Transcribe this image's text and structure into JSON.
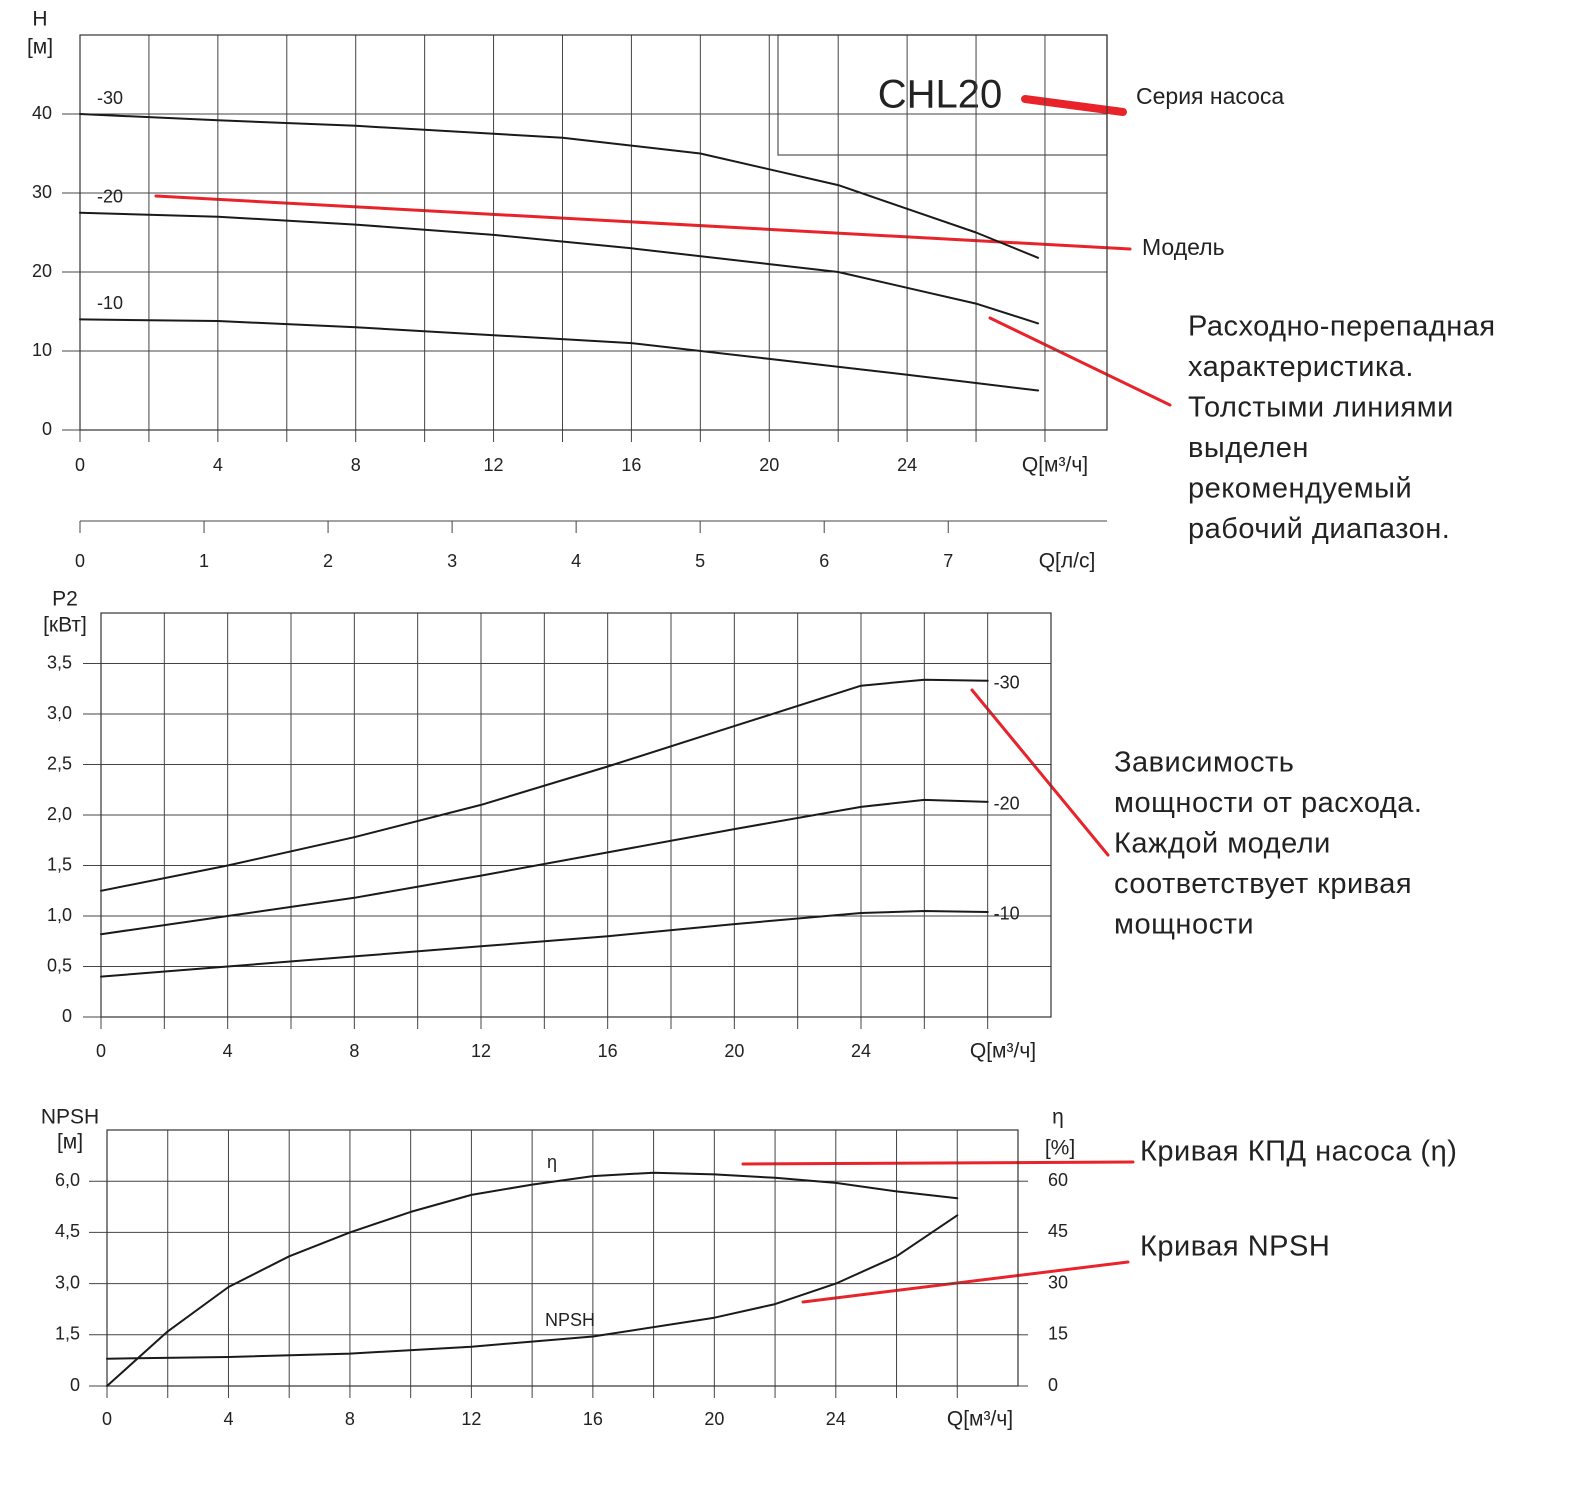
{
  "chart_data": [
    {
      "type": "line",
      "title": "CHL20",
      "xlabel": "Q[м³/ч]",
      "ylabel": "H",
      "yunit": "[м]",
      "xlim": [
        0,
        29.8
      ],
      "xticks": [
        0,
        4,
        8,
        12,
        16,
        20,
        24
      ],
      "xgrid": [
        0,
        2,
        4,
        6,
        8,
        10,
        12,
        14,
        16,
        18,
        20,
        22,
        24,
        26,
        28
      ],
      "ylim": [
        0,
        50
      ],
      "yticks": [
        0,
        10,
        20,
        30,
        40
      ],
      "grid": true,
      "x2lim": [
        0,
        8.28
      ],
      "x2ticks": [
        0,
        1,
        2,
        3,
        4,
        5,
        6,
        7
      ],
      "x2label": "Q[л/с]",
      "series": [
        {
          "name": "-30",
          "color": "#1a1a1a",
          "x": [
            0,
            4,
            8,
            12,
            14,
            16,
            18,
            20,
            22,
            24,
            26,
            27.8
          ],
          "values": [
            40,
            39.2,
            38.5,
            37.5,
            37,
            36,
            35,
            33,
            31,
            28,
            25,
            21.8
          ]
        },
        {
          "name": "-20",
          "color": "#1a1a1a",
          "x": [
            0,
            4,
            8,
            12,
            16,
            20,
            22,
            24,
            26,
            27.8
          ],
          "values": [
            27.5,
            27,
            26,
            24.7,
            23,
            21,
            20,
            18,
            16,
            13.5
          ]
        },
        {
          "name": "-10",
          "color": "#1a1a1a",
          "x": [
            0,
            4,
            8,
            12,
            16,
            20,
            24,
            27.8
          ],
          "values": [
            14,
            13.8,
            13,
            12,
            11,
            9,
            7,
            5
          ]
        }
      ],
      "annotations": [
        [
          "Серия насоса"
        ],
        [
          "Модель"
        ],
        [
          "Расходно-перепадная",
          "характеристика.",
          "Толстыми линиями",
          "выделен",
          "рекомендуемый",
          "рабочий диапазон."
        ]
      ]
    },
    {
      "type": "line",
      "xlabel": "Q[м³/ч]",
      "ylabel": "P2",
      "yunit": "[кВт]",
      "xlim": [
        0,
        30
      ],
      "xticks": [
        0,
        4,
        8,
        12,
        16,
        20,
        24
      ],
      "xgrid": [
        0,
        2,
        4,
        6,
        8,
        10,
        12,
        14,
        16,
        18,
        20,
        22,
        24,
        26,
        28
      ],
      "ylim": [
        0,
        4
      ],
      "yticks": [
        0,
        {
          "value": 0.5,
          "label": "0,5"
        },
        {
          "value": 1,
          "label": "1,0"
        },
        {
          "value": 1.5,
          "label": "1,5"
        },
        {
          "value": 2,
          "label": "2,0"
        },
        {
          "value": 2.5,
          "label": "2,5"
        },
        {
          "value": 3,
          "label": "3,0"
        },
        {
          "value": 3.5,
          "label": "3,5"
        }
      ],
      "grid": true,
      "series": [
        {
          "name": "-30",
          "color": "#1a1a1a",
          "x": [
            0,
            4,
            8,
            12,
            16,
            20,
            24,
            26,
            28
          ],
          "values": [
            1.25,
            1.5,
            1.78,
            2.1,
            2.48,
            2.88,
            3.28,
            3.34,
            3.33
          ]
        },
        {
          "name": "-20",
          "color": "#1a1a1a",
          "x": [
            0,
            4,
            8,
            12,
            16,
            20,
            24,
            26,
            28
          ],
          "values": [
            0.82,
            1.0,
            1.18,
            1.4,
            1.63,
            1.86,
            2.08,
            2.15,
            2.13
          ]
        },
        {
          "name": "-10",
          "color": "#1a1a1a",
          "x": [
            0,
            4,
            8,
            12,
            16,
            20,
            24,
            26,
            28
          ],
          "values": [
            0.4,
            0.5,
            0.6,
            0.7,
            0.8,
            0.92,
            1.03,
            1.05,
            1.04
          ]
        }
      ],
      "annotations": [
        [
          "Зависимость",
          "мощности от расхода.",
          "Каждой модели",
          "соответствует кривая",
          "мощности"
        ]
      ]
    },
    {
      "type": "line",
      "xlabel": "Q[м³/ч]",
      "ylabel": "NPSH",
      "yunit": "[м]",
      "y2label": "η",
      "y2unit": "[%]",
      "xlim": [
        0,
        30
      ],
      "xticks": [
        0,
        4,
        8,
        12,
        16,
        20,
        24
      ],
      "xgrid": [
        0,
        2,
        4,
        6,
        8,
        10,
        12,
        14,
        16,
        18,
        20,
        22,
        24,
        26,
        28
      ],
      "ylim": [
        0,
        7.5
      ],
      "yticks": [
        0,
        {
          "value": 1.5,
          "label": "1,5"
        },
        {
          "value": 3,
          "label": "3,0"
        },
        {
          "value": 4.5,
          "label": "4,5"
        },
        {
          "value": 6,
          "label": "6,0"
        }
      ],
      "grid": true,
      "y2lim": [
        0,
        75
      ],
      "y2ticks": [
        0,
        15,
        30,
        45,
        60
      ],
      "series": [
        {
          "name": "η",
          "color": "#1a1a1a",
          "axis": "y2",
          "x": [
            0,
            2,
            4,
            6,
            8,
            10,
            12,
            14,
            16,
            18,
            20,
            22,
            24,
            26,
            28
          ],
          "values": [
            0,
            16,
            29,
            38,
            45,
            51,
            56,
            59,
            61.5,
            62.5,
            62,
            61,
            59.5,
            57,
            55
          ]
        },
        {
          "name": "NPSH",
          "color": "#1a1a1a",
          "x": [
            0,
            4,
            8,
            12,
            16,
            20,
            22,
            24,
            26,
            28
          ],
          "values": [
            0.8,
            0.85,
            0.95,
            1.15,
            1.45,
            2.0,
            2.4,
            3.0,
            3.8,
            5.0
          ]
        }
      ],
      "annotations": [
        [
          "Кривая КПД насоса (η)"
        ],
        [
          "Кривая NPSH"
        ]
      ]
    }
  ]
}
